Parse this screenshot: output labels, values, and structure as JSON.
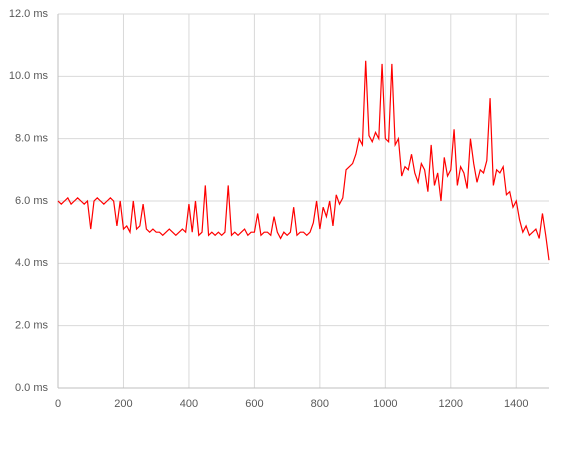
{
  "chart_data": {
    "type": "line",
    "x": [
      0,
      10,
      20,
      30,
      40,
      50,
      60,
      70,
      80,
      90,
      100,
      110,
      120,
      130,
      140,
      150,
      160,
      170,
      180,
      190,
      200,
      210,
      220,
      230,
      240,
      250,
      260,
      270,
      280,
      290,
      300,
      310,
      320,
      330,
      340,
      350,
      360,
      370,
      380,
      390,
      400,
      410,
      420,
      430,
      440,
      450,
      460,
      470,
      480,
      490,
      500,
      510,
      520,
      530,
      540,
      550,
      560,
      570,
      580,
      590,
      600,
      610,
      620,
      630,
      640,
      650,
      660,
      670,
      680,
      690,
      700,
      710,
      720,
      730,
      740,
      750,
      760,
      770,
      780,
      790,
      800,
      810,
      820,
      830,
      840,
      850,
      860,
      870,
      880,
      890,
      900,
      910,
      920,
      930,
      940,
      950,
      960,
      970,
      980,
      990,
      1000,
      1010,
      1020,
      1030,
      1040,
      1050,
      1060,
      1070,
      1080,
      1090,
      1100,
      1110,
      1120,
      1130,
      1140,
      1150,
      1160,
      1170,
      1180,
      1190,
      1200,
      1210,
      1220,
      1230,
      1240,
      1250,
      1260,
      1270,
      1280,
      1290,
      1300,
      1310,
      1320,
      1330,
      1340,
      1350,
      1360,
      1370,
      1380,
      1390,
      1400,
      1410,
      1420,
      1430,
      1440,
      1450,
      1460,
      1470,
      1480,
      1490,
      1500
    ],
    "series": [
      {
        "color": "#ff0000",
        "values": [
          6.0,
          5.9,
          6.0,
          6.1,
          5.9,
          6.0,
          6.1,
          6.0,
          5.9,
          6.0,
          5.1,
          6.0,
          6.1,
          6.0,
          5.9,
          6.0,
          6.1,
          6.0,
          5.2,
          6.0,
          5.1,
          5.2,
          5.0,
          6.0,
          5.1,
          5.2,
          5.9,
          5.1,
          5.0,
          5.1,
          5.0,
          5.0,
          4.9,
          5.0,
          5.1,
          5.0,
          4.9,
          5.0,
          5.1,
          5.0,
          5.9,
          5.0,
          6.0,
          4.9,
          5.0,
          6.5,
          4.9,
          5.0,
          4.9,
          5.0,
          4.9,
          5.0,
          6.5,
          4.9,
          5.0,
          4.9,
          5.0,
          5.1,
          4.9,
          5.0,
          5.0,
          5.6,
          4.9,
          5.0,
          5.0,
          4.9,
          5.5,
          5.0,
          4.8,
          5.0,
          4.9,
          5.0,
          5.8,
          4.9,
          5.0,
          5.0,
          4.9,
          5.0,
          5.3,
          6.0,
          5.1,
          5.8,
          5.5,
          6.0,
          5.2,
          6.2,
          5.9,
          6.1,
          7.0,
          7.1,
          7.2,
          7.5,
          8.0,
          7.8,
          10.5,
          8.1,
          7.9,
          8.2,
          8.0,
          10.4,
          8.0,
          7.9,
          10.4,
          7.8,
          8.0,
          6.8,
          7.1,
          7.0,
          7.5,
          6.9,
          6.6,
          7.2,
          7.0,
          6.3,
          7.8,
          6.5,
          6.9,
          6.0,
          7.4,
          6.8,
          7.0,
          8.3,
          6.5,
          7.1,
          6.9,
          6.4,
          8.0,
          7.2,
          6.6,
          7.0,
          6.9,
          7.3,
          9.3,
          6.5,
          7.0,
          6.9,
          7.1,
          6.2,
          6.3,
          5.8,
          6.0,
          5.4,
          5.0,
          5.2,
          4.9,
          5.0,
          5.1,
          4.8,
          5.6,
          4.9,
          4.1
        ]
      }
    ],
    "xlim": [
      0,
      1500
    ],
    "xticks": [
      0,
      200,
      400,
      600,
      800,
      1000,
      1200,
      1400
    ],
    "ylim": [
      0,
      12
    ],
    "yticks": [
      {
        "value": 0,
        "label": "0.0 ms"
      },
      {
        "value": 2,
        "label": "2.0 ms"
      },
      {
        "value": 4,
        "label": "4.0 ms"
      },
      {
        "value": 6,
        "label": "6.0 ms"
      },
      {
        "value": 8,
        "label": "8.0 ms"
      },
      {
        "value": 10,
        "label": "10.0 ms"
      },
      {
        "value": 12,
        "label": "12.0 ms"
      }
    ],
    "grid": true
  }
}
